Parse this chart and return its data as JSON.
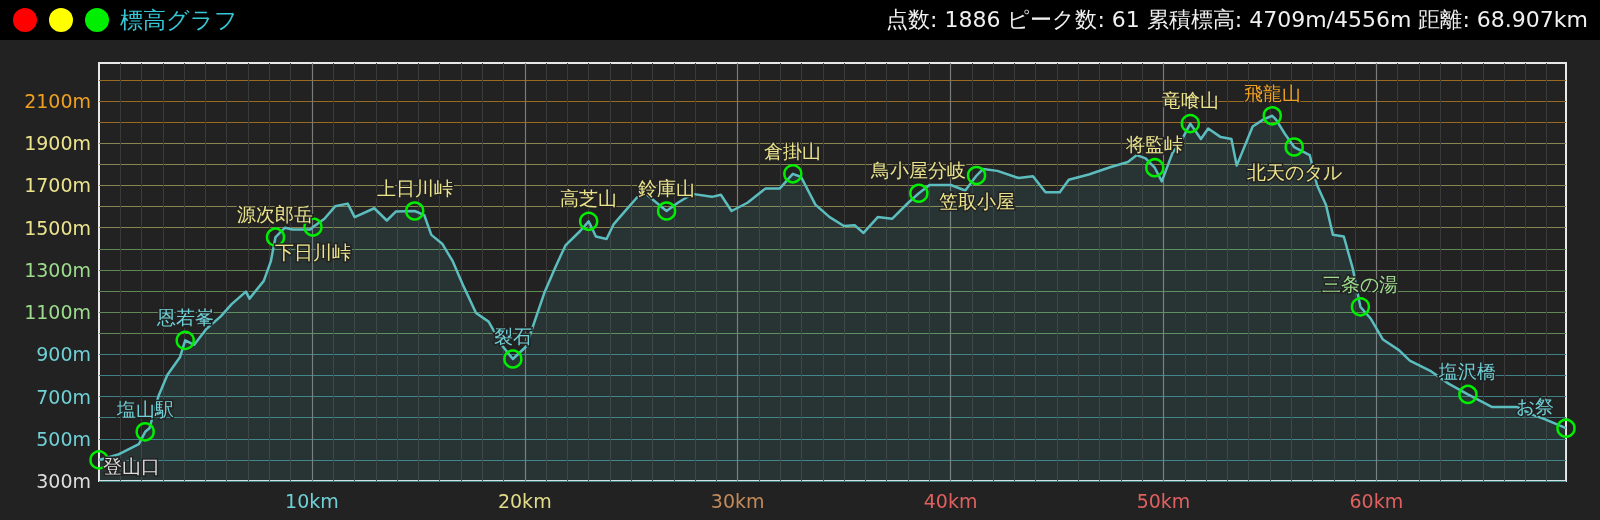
{
  "chart_data": {
    "type": "area",
    "title": "標高グラフ",
    "subtitle": "点数: 1886 ピーク数: 61 累積標高: 4709m/4556m 距離: 68.907km",
    "color": "#5cbdbf",
    "marker": "none",
    "grid": true,
    "xlim": [
      0,
      68.907
    ],
    "xticks": [
      {
        "value": 10,
        "label": "10km"
      },
      {
        "value": 20,
        "label": "20km"
      },
      {
        "value": 30,
        "label": "30km"
      },
      {
        "value": 40,
        "label": "40km"
      },
      {
        "value": 50,
        "label": "50km"
      },
      {
        "value": 60,
        "label": "60km"
      }
    ],
    "ylim": [
      300,
      2280
    ],
    "yticks": [
      {
        "value": 300,
        "label": "300m"
      },
      {
        "value": 400,
        "label": null
      },
      {
        "value": 500,
        "label": "500m"
      },
      {
        "value": 600,
        "label": null
      },
      {
        "value": 700,
        "label": "700m"
      },
      {
        "value": 800,
        "label": null
      },
      {
        "value": 900,
        "label": "900m"
      },
      {
        "value": 1000,
        "label": null
      },
      {
        "value": 1100,
        "label": "1100m"
      },
      {
        "value": 1200,
        "label": null
      },
      {
        "value": 1300,
        "label": "1300m"
      },
      {
        "value": 1400,
        "label": null
      },
      {
        "value": 1500,
        "label": "1500m"
      },
      {
        "value": 1600,
        "label": null
      },
      {
        "value": 1700,
        "label": "1700m"
      },
      {
        "value": 1800,
        "label": null
      },
      {
        "value": 1900,
        "label": "1900m"
      },
      {
        "value": 2000,
        "label": null
      },
      {
        "value": 2100,
        "label": "2100m"
      },
      {
        "value": 2200,
        "label": null
      }
    ],
    "x": [
      0,
      0.87,
      1.87,
      2.17,
      2.37,
      2.79,
      3.21,
      3.8,
      4.05,
      4.47,
      5.05,
      5.72,
      6.23,
      6.9,
      7.07,
      7.74,
      8.07,
      8.29,
      8.74,
      9.08,
      9.92,
      10.05,
      10.59,
      11.09,
      11.68,
      12.01,
      12.93,
      13.52,
      13.94,
      14.83,
      15.28,
      15.61,
      16.12,
      16.62,
      17.12,
      17.71,
      18.3,
      18.97,
      19.44,
      20.06,
      20.91,
      21.41,
      21.91,
      22.59,
      23.0,
      23.34,
      23.84,
      24.18,
      24.76,
      25.27,
      25.69,
      26.19,
      26.66,
      27.19,
      27.87,
      28.79,
      29.21,
      29.71,
      30.46,
      31.3,
      31.97,
      32.59,
      32.98,
      33.65,
      34.32,
      34.99,
      35.49,
      35.91,
      36.58,
      37.25,
      38.01,
      38.51,
      39.01,
      40.01,
      40.69,
      41.22,
      41.53,
      42.2,
      43.2,
      43.87,
      44.46,
      45.13,
      45.55,
      46.49,
      47.49,
      48.33,
      48.75,
      49.16,
      49.59,
      49.92,
      50.42,
      50.84,
      51.26,
      51.76,
      52.1,
      52.69,
      53.19,
      53.44,
      53.78,
      54.19,
      54.7,
      55.11,
      55.28,
      55.7,
      56.14,
      56.87,
      57.21,
      57.63,
      57.96,
      58.47,
      58.89,
      59.25,
      59.72,
      60.31,
      61.06,
      61.57,
      62.58,
      63.41,
      64.3,
      65.42,
      66.6,
      67.27,
      67.93,
      68.907
    ],
    "values": [
      400,
      424,
      475,
      533,
      550,
      701,
      802,
      886,
      966,
      945,
      1021,
      1080,
      1138,
      1197,
      1164,
      1248,
      1340,
      1455,
      1500,
      1491,
      1491,
      1503,
      1542,
      1601,
      1614,
      1550,
      1592,
      1534,
      1576,
      1579,
      1559,
      1466,
      1424,
      1340,
      1223,
      1096,
      1055,
      937,
      878,
      937,
      1189,
      1307,
      1416,
      1483,
      1530,
      1458,
      1446,
      1517,
      1584,
      1643,
      1660,
      1618,
      1579,
      1618,
      1660,
      1646,
      1656,
      1579,
      1618,
      1685,
      1685,
      1755,
      1740,
      1609,
      1550,
      1508,
      1512,
      1475,
      1550,
      1542,
      1618,
      1663,
      1702,
      1702,
      1676,
      1747,
      1778,
      1769,
      1735,
      1744,
      1668,
      1668,
      1727,
      1752,
      1786,
      1811,
      1844,
      1828,
      1784,
      1719,
      1853,
      1912,
      1993,
      1920,
      1970,
      1929,
      1920,
      1794,
      1878,
      1979,
      2013,
      2030,
      2013,
      1945,
      1882,
      1844,
      1702,
      1609,
      1466,
      1458,
      1307,
      1125,
      1071,
      970,
      920,
      870,
      819,
      760,
      710,
      651,
      651,
      617,
      592,
      550
    ],
    "annotations": [
      {
        "text": "登山口",
        "x": 0,
        "y": 400
      },
      {
        "text": "塩山駅",
        "x": 2.17,
        "y": 533
      },
      {
        "text": "恩若峯",
        "x": 4.05,
        "y": 966
      },
      {
        "text": "源次郎岳",
        "x": 8.29,
        "y": 1455
      },
      {
        "text": "下日川峠",
        "x": 10.05,
        "y": 1503
      },
      {
        "text": "上日川峠",
        "x": 14.83,
        "y": 1579
      },
      {
        "text": "裂石",
        "x": 19.44,
        "y": 878
      },
      {
        "text": "高芝山",
        "x": 23.0,
        "y": 1530
      },
      {
        "text": "鈴庫山",
        "x": 26.66,
        "y": 1579
      },
      {
        "text": "倉掛山",
        "x": 32.59,
        "y": 1755
      },
      {
        "text": "鳥小屋分岐",
        "x": 38.51,
        "y": 1663
      },
      {
        "text": "笠取小屋",
        "x": 41.22,
        "y": 1747
      },
      {
        "text": "将監峠",
        "x": 49.59,
        "y": 1784
      },
      {
        "text": "竜喰山",
        "x": 51.26,
        "y": 1993
      },
      {
        "text": "飛龍山",
        "x": 55.11,
        "y": 2030
      },
      {
        "text": "北天のタル",
        "x": 56.14,
        "y": 1882
      },
      {
        "text": "三条の湯",
        "x": 59.25,
        "y": 1125
      },
      {
        "text": "塩沢橋",
        "x": 64.3,
        "y": 710
      },
      {
        "text": "お祭",
        "x": 68.907,
        "y": 550
      }
    ]
  }
}
